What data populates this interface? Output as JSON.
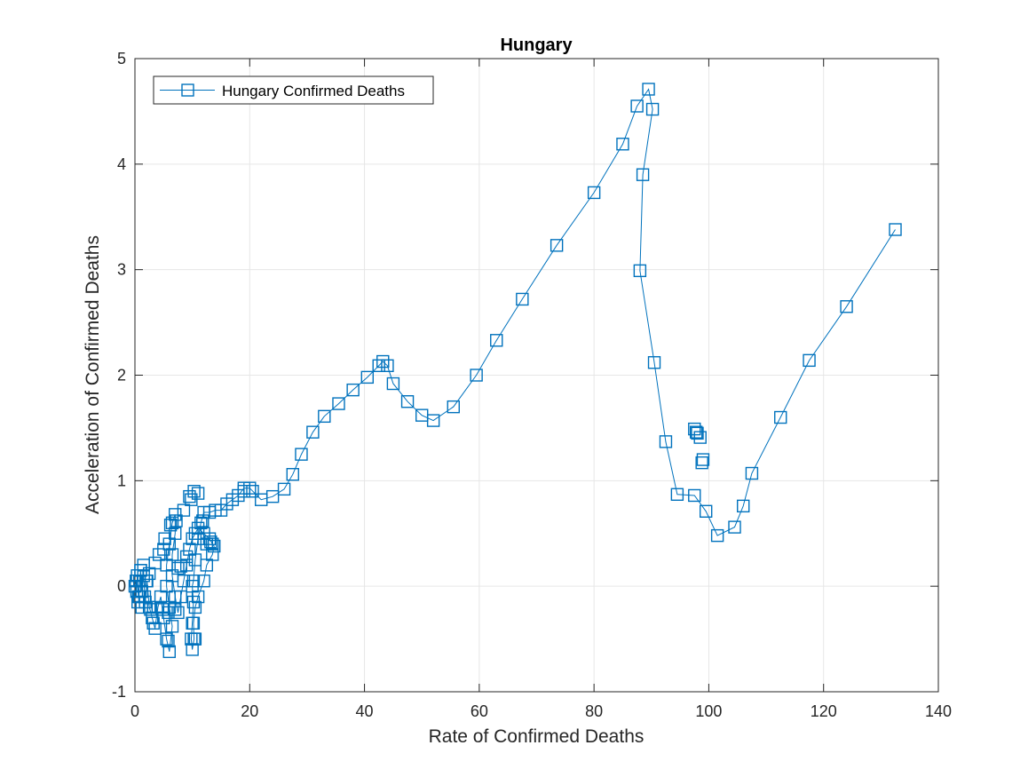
{
  "chart_data": {
    "type": "scatter",
    "title": "Hungary",
    "xlabel": "Rate of Confirmed Deaths",
    "ylabel": "Acceleration of Confirmed Deaths",
    "xlim": [
      0,
      140
    ],
    "ylim": [
      -1,
      5
    ],
    "xticks": [
      0,
      20,
      40,
      60,
      80,
      100,
      120,
      140
    ],
    "yticks": [
      -1,
      0,
      1,
      2,
      3,
      4,
      5
    ],
    "grid": true,
    "legend_position": "top-left",
    "line_style": "line with square markers",
    "series": [
      {
        "name": "Hungary Confirmed Deaths",
        "color": "#0072BD",
        "marker": "square",
        "points": [
          [
            0,
            0
          ],
          [
            0.2,
            0.05
          ],
          [
            0.3,
            -0.05
          ],
          [
            0.4,
            0.1
          ],
          [
            0.6,
            -0.1
          ],
          [
            0.8,
            0.05
          ],
          [
            1,
            0.15
          ],
          [
            1.2,
            -0.05
          ],
          [
            1.5,
            0.1
          ],
          [
            1.8,
            -0.15
          ],
          [
            2.1,
            0.05
          ],
          [
            2.5,
            -0.2
          ],
          [
            3,
            -0.3
          ],
          [
            3.5,
            -0.4
          ],
          [
            4,
            -0.2
          ],
          [
            4.5,
            -0.1
          ],
          [
            5,
            -0.3
          ],
          [
            5.5,
            -0.5
          ],
          [
            6,
            -0.62
          ],
          [
            6.5,
            -0.38
          ],
          [
            6,
            -0.2
          ],
          [
            5.5,
            0
          ],
          [
            5.5,
            0.2
          ],
          [
            6,
            0.4
          ],
          [
            6.5,
            0.6
          ],
          [
            7,
            0.68
          ],
          [
            7,
            0.5
          ],
          [
            6.5,
            0.3
          ],
          [
            6.5,
            0.1
          ],
          [
            7,
            -0.1
          ],
          [
            7.5,
            -0.25
          ],
          [
            8,
            -0.1
          ],
          [
            8.5,
            0.05
          ],
          [
            9,
            0.2
          ],
          [
            9.5,
            0.35
          ],
          [
            10,
            0.45
          ],
          [
            10.5,
            0.5
          ],
          [
            11,
            0.55
          ],
          [
            12,
            0.5
          ],
          [
            13,
            0.45
          ],
          [
            13.5,
            0.4
          ],
          [
            13.8,
            0.38
          ],
          [
            13.5,
            0.3
          ],
          [
            12.5,
            0.2
          ],
          [
            12,
            0.05
          ],
          [
            11,
            -0.1
          ],
          [
            10.5,
            -0.2
          ],
          [
            10.2,
            -0.35
          ],
          [
            10.3,
            -0.5
          ],
          [
            10,
            -0.6
          ],
          [
            9.8,
            -0.5
          ],
          [
            10,
            -0.35
          ],
          [
            10.2,
            -0.15
          ],
          [
            10,
            0
          ],
          [
            10.2,
            0.05
          ],
          [
            10.5,
            0.25
          ],
          [
            11,
            0.45
          ],
          [
            11.5,
            0.6
          ],
          [
            12,
            0.7
          ],
          [
            13,
            0.7
          ],
          [
            14,
            0.72
          ],
          [
            15,
            0.72
          ],
          [
            16,
            0.78
          ],
          [
            17,
            0.82
          ],
          [
            18,
            0.86
          ],
          [
            19,
            0.93
          ],
          [
            20,
            0.93
          ],
          [
            22,
            0.82
          ],
          [
            24,
            0.85
          ],
          [
            26,
            0.92
          ],
          [
            27.5,
            1.06
          ],
          [
            29,
            1.25
          ],
          [
            31,
            1.46
          ],
          [
            33,
            1.61
          ],
          [
            35.5,
            1.73
          ],
          [
            38,
            1.86
          ],
          [
            40.5,
            1.98
          ],
          [
            42.5,
            2.09
          ],
          [
            43.2,
            2.13
          ],
          [
            44,
            2.09
          ],
          [
            45,
            1.92
          ],
          [
            47.5,
            1.75
          ],
          [
            50,
            1.62
          ],
          [
            52,
            1.57
          ],
          [
            55.5,
            1.7
          ],
          [
            59.5,
            2
          ],
          [
            63,
            2.33
          ],
          [
            67.5,
            2.72
          ],
          [
            73.5,
            3.23
          ],
          [
            80,
            3.73
          ],
          [
            85,
            4.19
          ],
          [
            87.5,
            4.55
          ],
          [
            89.5,
            4.71
          ],
          [
            90.2,
            4.52
          ],
          [
            88.5,
            3.9
          ],
          [
            88,
            2.99
          ],
          [
            90.5,
            2.12
          ],
          [
            92.5,
            1.37
          ],
          [
            94.5,
            0.87
          ],
          [
            97.5,
            0.86
          ],
          [
            99.5,
            0.71
          ],
          [
            101.5,
            0.48
          ],
          [
            104.5,
            0.56
          ],
          [
            106,
            0.76
          ],
          [
            107.5,
            1.07
          ],
          [
            112.5,
            1.6
          ],
          [
            117.5,
            2.14
          ],
          [
            124,
            2.65
          ],
          [
            132.5,
            3.38
          ]
        ]
      }
    ],
    "extra_markers": [
      [
        97.5,
        1.49
      ],
      [
        98,
        1.45
      ],
      [
        98.5,
        1.41
      ],
      [
        99,
        1.2
      ],
      [
        98.8,
        1.17
      ],
      [
        97.8,
        1.46
      ],
      [
        1,
        0.15
      ],
      [
        0.8,
        -0.1
      ],
      [
        1.5,
        0.2
      ],
      [
        2,
        0.05
      ],
      [
        1.2,
        -0.2
      ],
      [
        0.5,
        -0.15
      ],
      [
        2.5,
        0.12
      ],
      [
        3.5,
        0.22
      ],
      [
        4.2,
        0.3
      ],
      [
        5,
        0.35
      ],
      [
        5.2,
        0.45
      ],
      [
        4.8,
        -0.22
      ],
      [
        5.8,
        -0.25
      ],
      [
        6.2,
        0.58
      ],
      [
        7.2,
        0.62
      ],
      [
        8.5,
        0.72
      ],
      [
        9.5,
        0.85
      ],
      [
        10.3,
        0.9
      ],
      [
        11,
        0.88
      ],
      [
        9.8,
        0.82
      ],
      [
        8,
        0.19
      ],
      [
        7.5,
        0.17
      ],
      [
        9,
        0.28
      ],
      [
        10.5,
        -0.5
      ],
      [
        5.8,
        -0.52
      ],
      [
        7,
        -0.22
      ],
      [
        3.2,
        -0.35
      ],
      [
        2.7,
        -0.22
      ],
      [
        1.7,
        -0.1
      ],
      [
        12.5,
        0.4
      ],
      [
        13.2,
        0.42
      ],
      [
        11.8,
        0.62
      ],
      [
        19,
        0.9
      ],
      [
        20.5,
        0.9
      ]
    ]
  }
}
